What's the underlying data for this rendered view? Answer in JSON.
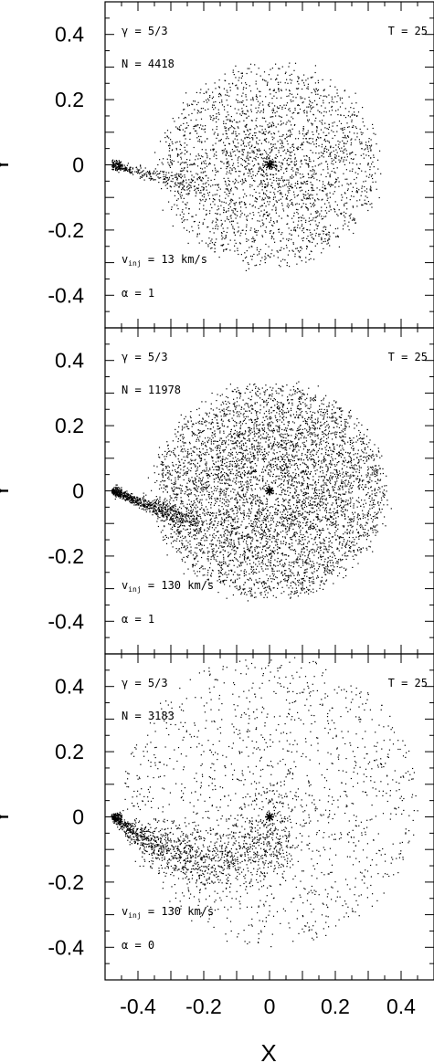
{
  "chart_data": [
    {
      "type": "scatter",
      "panel": "top",
      "xlabel": "X",
      "ylabel": "Y",
      "xlim": [
        -0.5,
        0.5
      ],
      "ylim": [
        -0.5,
        0.5
      ],
      "x_ticks": [
        "-0.4",
        "-0.2",
        "0",
        "0.2",
        "0.4"
      ],
      "y_ticks": [
        "0.4",
        "0.2",
        "0",
        "-0.2",
        "-0.4"
      ],
      "annotations": {
        "gamma": "γ = 5/3",
        "time": "T = 25",
        "particles": "N = 4418",
        "vinj_prefix": "v",
        "vinj_sub": "inj",
        "vinj_value": " = 13 km/s",
        "alpha": "α = 1"
      },
      "structures": {
        "central_star": [
          0,
          0
        ],
        "disc": {
          "center": [
            0,
            0
          ],
          "radius_inner": 0.03,
          "radius_outer": 0.33,
          "density": "moderate"
        },
        "stream": {
          "from": [
            -0.48,
            0.0
          ],
          "to": [
            -0.2,
            -0.07
          ]
        }
      }
    },
    {
      "type": "scatter",
      "panel": "middle",
      "xlabel": "X",
      "ylabel": "Y",
      "xlim": [
        -0.5,
        0.5
      ],
      "ylim": [
        -0.5,
        0.5
      ],
      "x_ticks": [
        "-0.4",
        "-0.2",
        "0",
        "0.2",
        "0.4"
      ],
      "y_ticks": [
        "0.4",
        "0.2",
        "0",
        "-0.2",
        "-0.4"
      ],
      "annotations": {
        "gamma": "γ = 5/3",
        "time": "T = 25",
        "particles": "N = 11978",
        "vinj_prefix": "v",
        "vinj_sub": "inj",
        "vinj_value": " = 130 km/s",
        "alpha": "α = 1"
      },
      "structures": {
        "central_star": [
          0,
          0
        ],
        "disc": {
          "center": [
            0,
            0
          ],
          "radius_inner": 0.05,
          "radius_outer": 0.35,
          "density": "high"
        },
        "stream": {
          "from": [
            -0.48,
            0.0
          ],
          "to": [
            -0.22,
            -0.1
          ]
        }
      }
    },
    {
      "type": "scatter",
      "panel": "bottom",
      "xlabel": "X",
      "ylabel": "Y",
      "xlim": [
        -0.5,
        0.5
      ],
      "ylim": [
        -0.5,
        0.5
      ],
      "x_ticks": [
        "-0.4",
        "-0.2",
        "0",
        "0.2",
        "0.4"
      ],
      "y_ticks": [
        "0.4",
        "0.2",
        "0",
        "-0.2",
        "-0.4"
      ],
      "annotations": {
        "gamma": "γ = 5/3",
        "time": "T = 25",
        "particles": "N = 3183",
        "vinj_prefix": "v",
        "vinj_sub": "inj",
        "vinj_value": " = 130 km/s",
        "alpha": "α = 0"
      },
      "structures": {
        "central_star": [
          0,
          0
        ],
        "halo": {
          "center": [
            0,
            0.05
          ],
          "radius": 0.45,
          "density": "sparse"
        },
        "stream": {
          "from": [
            -0.48,
            0.0
          ],
          "to": [
            0.05,
            -0.05
          ],
          "shape": "arc"
        }
      }
    }
  ]
}
